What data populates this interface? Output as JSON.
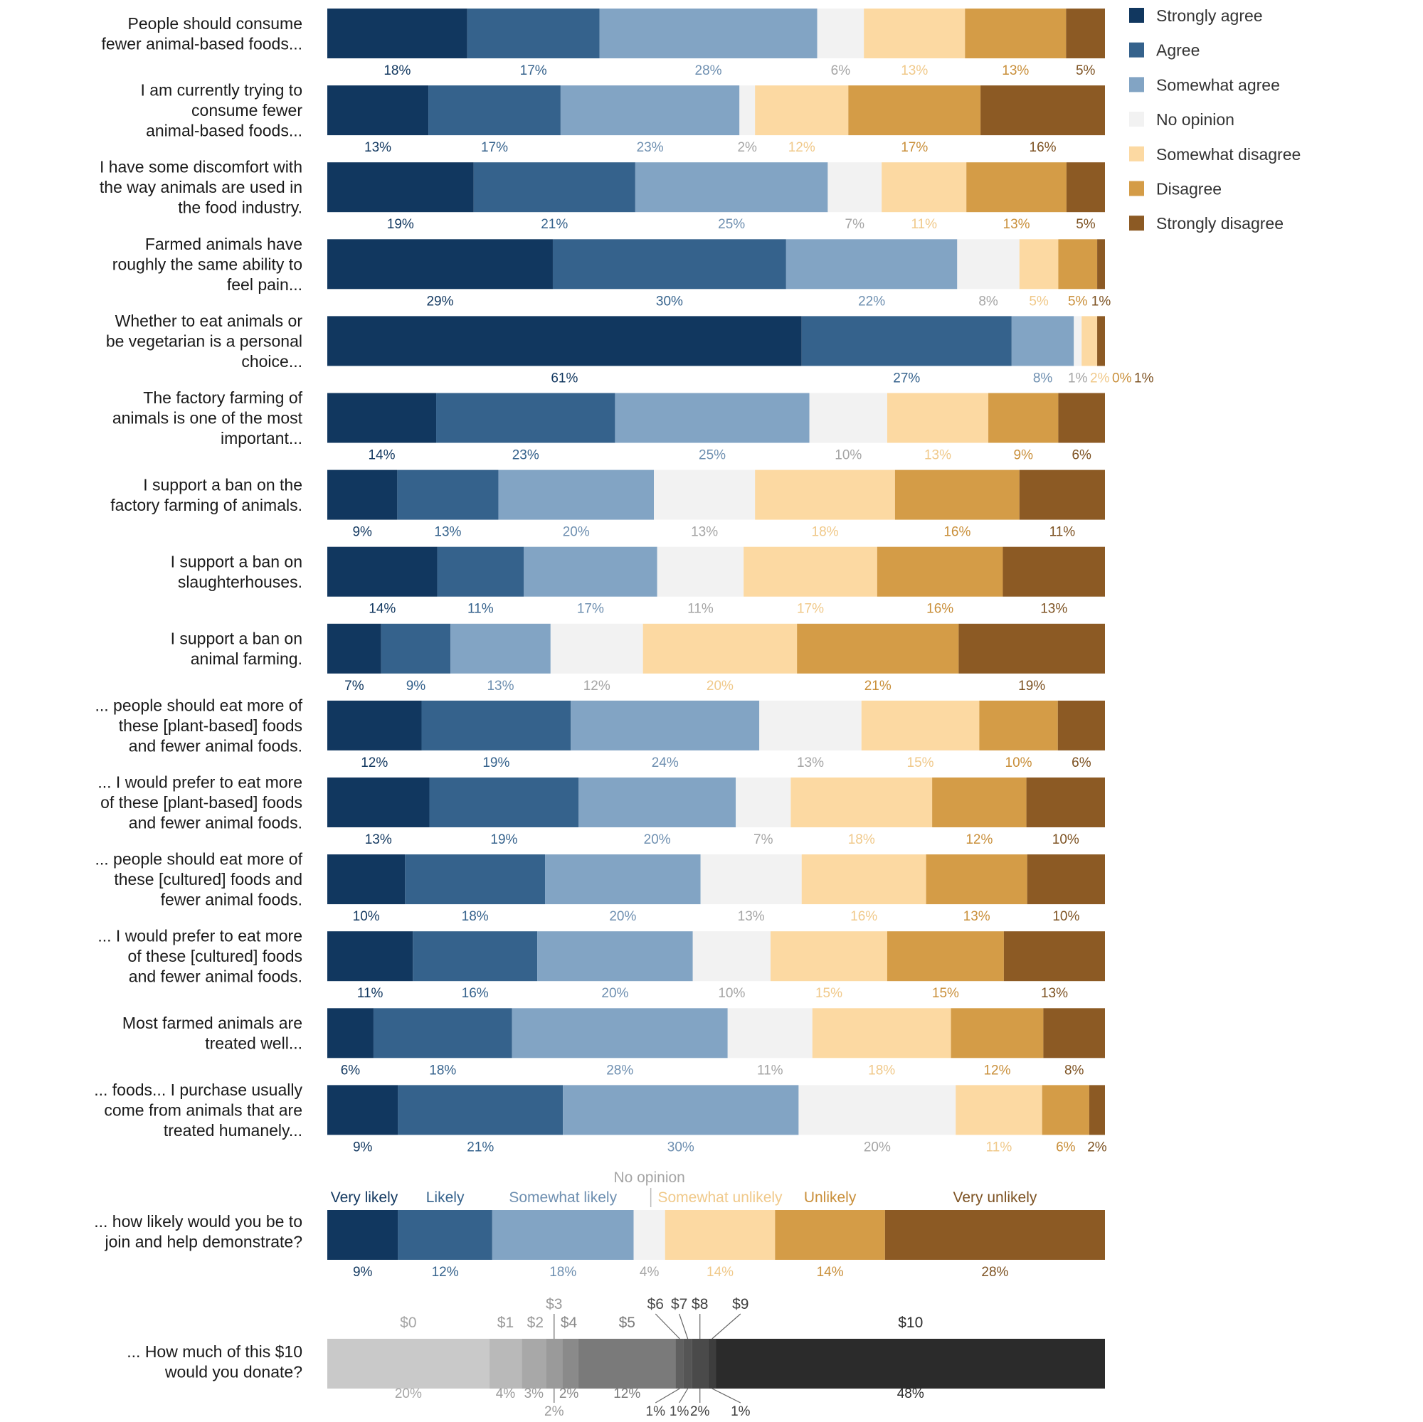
{
  "colors": {
    "strongly_agree": "#11375f",
    "agree": "#35628c",
    "somewhat_agree": "#82a4c4",
    "no_opinion": "#f2f2f2",
    "somewhat_disagree": "#fcd9a2",
    "disagree": "#d49c47",
    "strongly_disagree": "#8c5a24"
  },
  "label_colors": {
    "strongly_agree": "#11375f",
    "agree": "#35628c",
    "somewhat_agree": "#6e8fb0",
    "no_opinion": "#a5a5a5",
    "somewhat_disagree": "#f0c98a",
    "disagree": "#c98f3a",
    "strongly_disagree": "#7d5222"
  },
  "legend": [
    {
      "key": "strongly_agree",
      "label": "Strongly agree"
    },
    {
      "key": "agree",
      "label": "Agree"
    },
    {
      "key": "somewhat_agree",
      "label": "Somewhat agree"
    },
    {
      "key": "no_opinion",
      "label": "No opinion"
    },
    {
      "key": "somewhat_disagree",
      "label": "Somewhat disagree"
    },
    {
      "key": "disagree",
      "label": "Disagree"
    },
    {
      "key": "strongly_disagree",
      "label": "Strongly disagree"
    }
  ],
  "likely_colors": [
    "#11375f",
    "#35628c",
    "#82a4c4",
    "#f2f2f2",
    "#fcd9a2",
    "#d49c47",
    "#8c5a24"
  ],
  "likely_label_colors": [
    "#11375f",
    "#35628c",
    "#6e8fb0",
    "#a5a5a5",
    "#f0c98a",
    "#c98f3a",
    "#7d5222"
  ],
  "donate_colors": [
    "#c9c9c9",
    "#b9b9b9",
    "#a8a8a8",
    "#9a9a9a",
    "#8a8a8a",
    "#7a7a7a",
    "#5f5f5f",
    "#555555",
    "#4a4a4a",
    "#3d3d3d",
    "#2b2b2b"
  ],
  "donate_label_colors": [
    "#a5a5a5",
    "#9a9a9a",
    "#9a9a9a",
    "#9a9a9a",
    "#8a8a8a",
    "#7a7a7a",
    "#4a4a4a",
    "#4a4a4a",
    "#3d3d3d",
    "#3d3d3d",
    "#2b2b2b"
  ],
  "chart_data": [
    {
      "type": "bar",
      "stacked": true,
      "orientation": "horizontal",
      "legend_position": "top-right",
      "categories": [
        "People should consume fewer animal-based foods...",
        "I am currently trying to consume fewer animal-based foods...",
        "I have some discomfort with the way animals are used in the food industry.",
        "Farmed animals have roughly the same ability to feel pain...",
        "Whether to eat animals or be vegetarian is a personal choice...",
        "The factory farming of animals is one of the most important...",
        "I support a ban on the factory farming of animals.",
        "I support a ban on slaughterhouses.",
        "I support a ban on animal farming.",
        "... people should eat more of these [plant-based] foods and fewer animal foods.",
        "... I would prefer to eat more of these [plant-based] foods and fewer animal foods.",
        "... people should eat more of these [cultured] foods and fewer animal foods.",
        "... I would prefer to eat more of these [cultured] foods and fewer animal foods.",
        "Most farmed animals are treated well...",
        "... foods... I purchase usually come from animals that are treated humanely..."
      ],
      "category_lines": [
        [
          "People should consume",
          "fewer animal-based foods..."
        ],
        [
          "I am currently trying to",
          "consume fewer",
          "animal-based foods..."
        ],
        [
          "I have some discomfort with",
          "the way animals are used in",
          "the food industry."
        ],
        [
          "Farmed animals have",
          "roughly the same ability to",
          "feel pain..."
        ],
        [
          "Whether to eat animals or",
          "be vegetarian is a personal",
          "choice..."
        ],
        [
          "The factory farming of",
          "animals is one of the most",
          "important..."
        ],
        [
          "I support a ban on the",
          "factory farming of animals."
        ],
        [
          "I support a ban on",
          "slaughterhouses."
        ],
        [
          "I support a ban on",
          "animal farming."
        ],
        [
          "... people should eat more of",
          "these [plant-based] foods",
          "and fewer animal foods."
        ],
        [
          "... I would prefer to eat more",
          "of these [plant-based] foods",
          "and fewer animal foods."
        ],
        [
          "... people should eat more of",
          "these [cultured] foods and",
          "fewer animal foods."
        ],
        [
          "... I would prefer to eat more",
          "of these [cultured] foods",
          "and fewer animal foods."
        ],
        [
          "Most farmed animals are",
          "treated well..."
        ],
        [
          "... foods... I purchase usually",
          "come from animals that are",
          "treated humanely..."
        ]
      ],
      "series": [
        {
          "name": "Strongly agree",
          "key": "strongly_agree",
          "values": [
            18,
            13,
            19,
            29,
            61,
            14,
            9,
            14,
            7,
            12,
            13,
            10,
            11,
            6,
            9
          ]
        },
        {
          "name": "Agree",
          "key": "agree",
          "values": [
            17,
            17,
            21,
            30,
            27,
            23,
            13,
            11,
            9,
            19,
            19,
            18,
            16,
            18,
            21
          ]
        },
        {
          "name": "Somewhat agree",
          "key": "somewhat_agree",
          "values": [
            28,
            23,
            25,
            22,
            8,
            25,
            20,
            17,
            13,
            24,
            20,
            20,
            20,
            28,
            30
          ]
        },
        {
          "name": "No opinion",
          "key": "no_opinion",
          "values": [
            6,
            2,
            7,
            8,
            1,
            10,
            13,
            11,
            12,
            13,
            7,
            13,
            10,
            11,
            20
          ]
        },
        {
          "name": "Somewhat disagree",
          "key": "somewhat_disagree",
          "values": [
            13,
            12,
            11,
            5,
            2,
            13,
            18,
            17,
            20,
            15,
            18,
            16,
            15,
            18,
            11
          ]
        },
        {
          "name": "Disagree",
          "key": "disagree",
          "values": [
            13,
            17,
            13,
            5,
            0,
            9,
            16,
            16,
            21,
            10,
            12,
            13,
            15,
            12,
            6
          ]
        },
        {
          "name": "Strongly disagree",
          "key": "strongly_disagree",
          "values": [
            5,
            16,
            5,
            1,
            1,
            6,
            11,
            13,
            19,
            6,
            10,
            10,
            13,
            8,
            2
          ]
        }
      ]
    },
    {
      "type": "bar",
      "stacked": true,
      "orientation": "horizontal",
      "question_lines": [
        "... how likely would you be to",
        "join and help demonstrate?"
      ],
      "categories": [
        "Very likely",
        "Likely",
        "Somewhat likely",
        "No opinion",
        "Somewhat unlikely",
        "Unlikely",
        "Very unlikely"
      ],
      "values": [
        9,
        12,
        18,
        4,
        14,
        14,
        28
      ]
    },
    {
      "type": "bar",
      "stacked": true,
      "orientation": "horizontal",
      "question_lines": [
        "... How much of this $10",
        "would you donate?"
      ],
      "categories": [
        "$0",
        "$1",
        "$2",
        "$3",
        "$4",
        "$5",
        "$6",
        "$7",
        "$8",
        "$9",
        "$10"
      ],
      "values": [
        20,
        4,
        3,
        2,
        2,
        12,
        1,
        1,
        2,
        1,
        48
      ]
    }
  ]
}
